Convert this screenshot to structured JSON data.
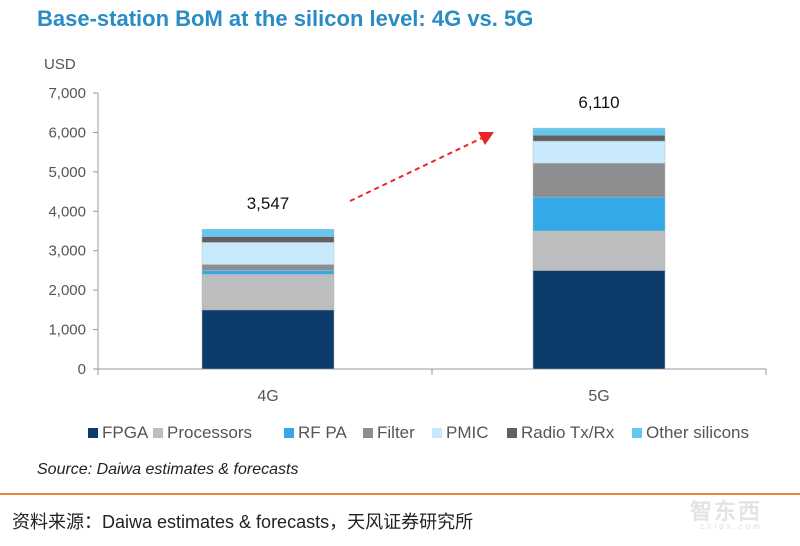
{
  "chart_data": {
    "type": "stacked-bar",
    "title": "Base-station BoM at the silicon level: 4G vs. 5G",
    "ylabel": "USD",
    "ylim": [
      0,
      7000
    ],
    "yticks": [
      "0",
      "1,000",
      "2,000",
      "3,000",
      "4,000",
      "5,000",
      "6,000",
      "7,000"
    ],
    "categories": [
      "4G",
      "5G"
    ],
    "totals": [
      "3,547",
      "6,110"
    ],
    "series": [
      {
        "name": "FPGA",
        "color": "#0d3b6b",
        "values": [
          1500,
          2500
        ]
      },
      {
        "name": "Processors",
        "color": "#bcbdbf",
        "values": [
          900,
          1000
        ]
      },
      {
        "name": "RF PA",
        "color": "#33a9e8",
        "values": [
          100,
          860
        ]
      },
      {
        "name": "Filter",
        "color": "#8c8d8f",
        "values": [
          150,
          860
        ]
      },
      {
        "name": "PMIC",
        "color": "#c8e9fb",
        "values": [
          560,
          560
        ]
      },
      {
        "name": "Radio Tx/Rx",
        "color": "#5f6062",
        "values": [
          150,
          150
        ]
      },
      {
        "name": "Other silicons",
        "color": "#63c8f0",
        "values": [
          187,
          180
        ]
      }
    ],
    "legend_position": "bottom",
    "grid": false,
    "annotation": "red dashed arrow from 4G to 5G"
  },
  "source": "Source: Daiwa  estimates & forecasts",
  "footer": "资料来源：Daiwa estimates & forecasts，天风证券研究所",
  "watermark": {
    "logo": "智东西",
    "site": "zhidx.com"
  }
}
